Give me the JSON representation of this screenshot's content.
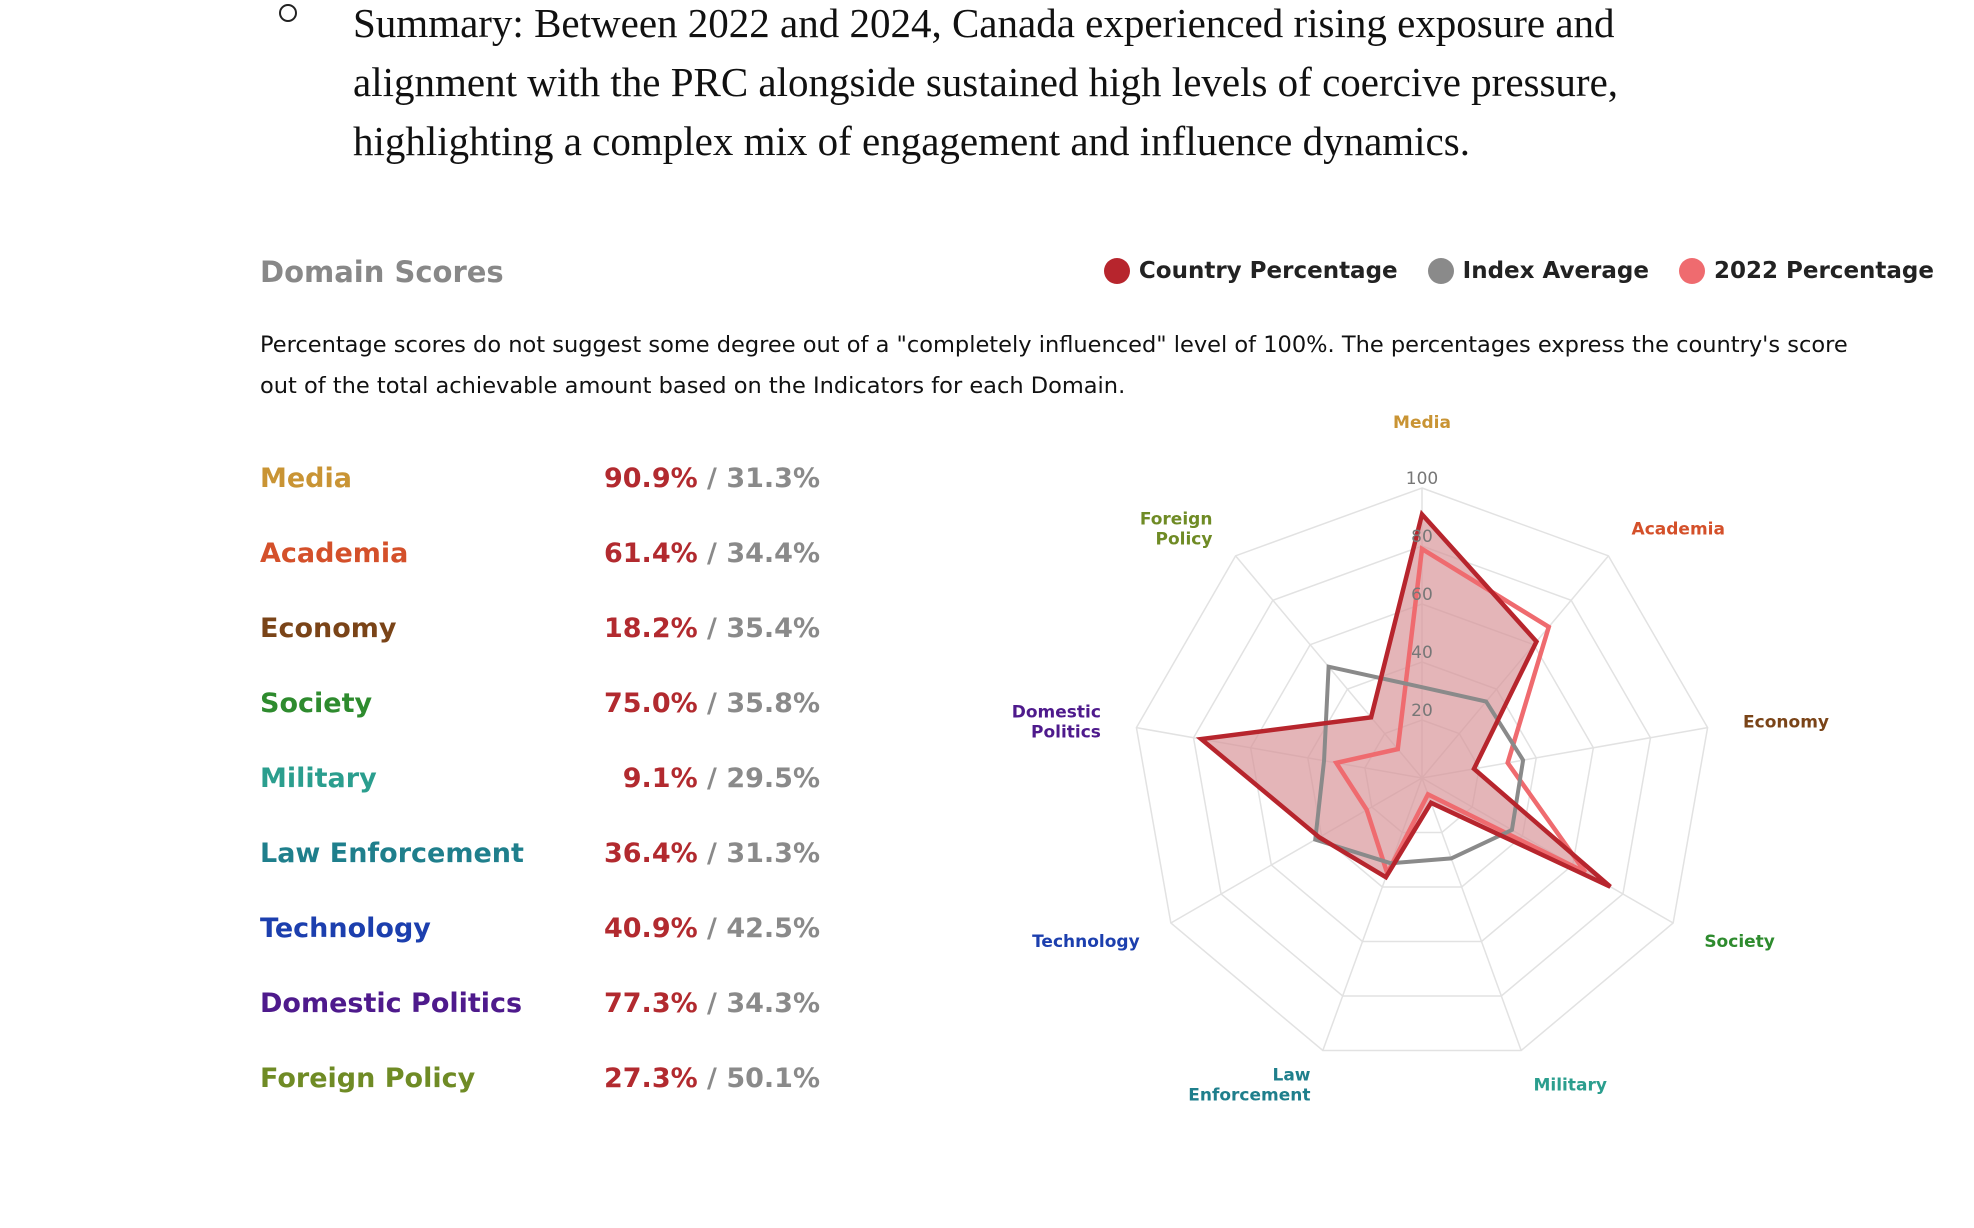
{
  "summary": {
    "text": "Summary: Between 2022 and 2024, Canada experienced rising exposure and alignment with the PRC alongside sustained high levels of coercive pressure, highlighting a complex mix of engagement and influence dynamics."
  },
  "section_title": "Domain Scores",
  "legend": {
    "country": "Country Percentage",
    "index": "Index Average",
    "prev": "2022 Percentage"
  },
  "colors": {
    "country": "#b7252d",
    "index": "#8a8a8a",
    "prev": "#ef6b6f",
    "fill": "#d9959a",
    "grid": "#e2e2e2"
  },
  "note": "Percentage scores do not suggest some degree out of a \"completely influenced\" level of 100%. The percentages express the country's score out of the total achievable amount based on the Indicators for each Domain.",
  "domains": [
    {
      "name": "Media",
      "country": "90.9%",
      "index": "31.3%",
      "color": "#c99434"
    },
    {
      "name": "Academia",
      "country": "61.4%",
      "index": "34.4%",
      "color": "#d4502a"
    },
    {
      "name": "Economy",
      "country": "18.2%",
      "index": "35.4%",
      "color": "#7a4418"
    },
    {
      "name": "Society",
      "country": "75.0%",
      "index": "35.8%",
      "color": "#2e8b2e"
    },
    {
      "name": "Military",
      "country": "9.1%",
      "index": "29.5%",
      "color": "#2b9e8e"
    },
    {
      "name": "Law Enforcement",
      "country": "36.4%",
      "index": "31.3%",
      "color": "#1f7f8c"
    },
    {
      "name": "Technology",
      "country": "40.9%",
      "index": "42.5%",
      "color": "#1c3fae"
    },
    {
      "name": "Domestic Politics",
      "country": "77.3%",
      "index": "34.3%",
      "color": "#4e1a8c"
    },
    {
      "name": "Foreign Policy",
      "country": "27.3%",
      "index": "50.1%",
      "color": "#6f8b25"
    }
  ],
  "chart_data": {
    "type": "radar",
    "title": "Domain Scores",
    "categories": [
      "Media",
      "Academia",
      "Economy",
      "Society",
      "Military",
      "Law Enforcement",
      "Technology",
      "Domestic Politics",
      "Foreign Policy"
    ],
    "axis_labels": [
      [
        "Media"
      ],
      [
        "Academia"
      ],
      [
        "Economy"
      ],
      [
        "Society"
      ],
      [
        "Military"
      ],
      [
        "Law",
        "Enforcement"
      ],
      [
        "Technology"
      ],
      [
        "Domestic",
        "Politics"
      ],
      [
        "Foreign",
        "Policy"
      ]
    ],
    "rlim": [
      0,
      100
    ],
    "ticks": [
      "20",
      "40",
      "60",
      "80",
      "100"
    ],
    "series": [
      {
        "name": "Country Percentage",
        "values": [
          90.9,
          61.4,
          18.2,
          75.0,
          9.1,
          36.4,
          40.9,
          77.3,
          27.3
        ]
      },
      {
        "name": "Index Average",
        "values": [
          31.3,
          34.4,
          35.4,
          35.8,
          29.5,
          31.3,
          42.5,
          34.3,
          50.1
        ]
      },
      {
        "name": "2022 Percentage",
        "values": [
          79,
          68,
          30,
          65,
          6,
          35,
          22,
          30,
          13
        ]
      }
    ],
    "legend_position": "top-right"
  }
}
